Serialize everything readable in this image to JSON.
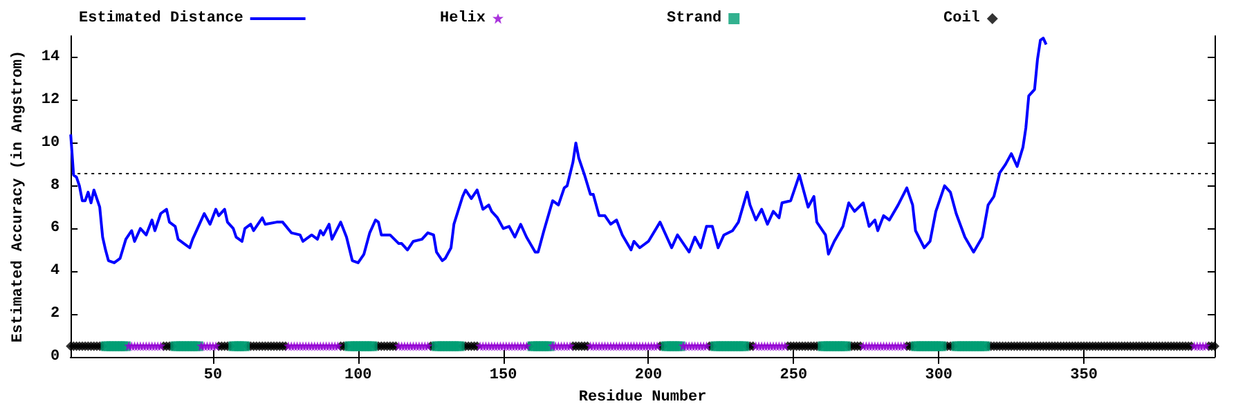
{
  "chart_data": {
    "type": "line",
    "xlabel": "Residue Number",
    "ylabel": "Estimated Accuracy (in Angstrom)",
    "xlim": [
      1,
      395
    ],
    "xticks": [
      50,
      100,
      150,
      200,
      250,
      300,
      350
    ],
    "ylim": [
      0,
      15
    ],
    "yticks": [
      0,
      2,
      4,
      6,
      8,
      10,
      12,
      14
    ],
    "grid": false,
    "legend": "top",
    "ref_lines": [
      {
        "axis": "y",
        "value": 8.6,
        "color": "#000000",
        "line_style": "dotted"
      }
    ],
    "series": [
      {
        "name": "Estimated Distance",
        "type": "line",
        "color": "#0000ff",
        "marker": "none",
        "line_style": "solid",
        "x": [
          1,
          2,
          3,
          4,
          5,
          6,
          7,
          8,
          9,
          11,
          12,
          13,
          14,
          16,
          18,
          20,
          22,
          23,
          25,
          27,
          29,
          30,
          32,
          34,
          35,
          37,
          38,
          40,
          42,
          43,
          45,
          47,
          49,
          51,
          52,
          54,
          55,
          57,
          58,
          60,
          61,
          63,
          64,
          67,
          68,
          72,
          74,
          77,
          80,
          81,
          84,
          86,
          87,
          88,
          90,
          91,
          94,
          96,
          98,
          100,
          102,
          104,
          106,
          107,
          108,
          111,
          114,
          115,
          117,
          119,
          122,
          124,
          126,
          127,
          129,
          130,
          132,
          133,
          136,
          137,
          139,
          141,
          143,
          145,
          146,
          148,
          150,
          152,
          154,
          156,
          158,
          161,
          162,
          164,
          167,
          169,
          171,
          172,
          174,
          175,
          176,
          178,
          180,
          181,
          183,
          185,
          187,
          189,
          191,
          194,
          195,
          197,
          200,
          204,
          208,
          210,
          214,
          216,
          218,
          220,
          222,
          224,
          226,
          229,
          231,
          234,
          235,
          237,
          239,
          241,
          243,
          245,
          246,
          249,
          252,
          254,
          255,
          257,
          258,
          261,
          262,
          264,
          267,
          269,
          271,
          274,
          276,
          278,
          279,
          281,
          283,
          286,
          289,
          291,
          292,
          295,
          297,
          299,
          302,
          304,
          306,
          309,
          312,
          315,
          317,
          319,
          321,
          323,
          325,
          327,
          329,
          330,
          331,
          333,
          334,
          335,
          336,
          337
        ],
        "values": [
          10.4,
          8.5,
          8.4,
          8.0,
          7.3,
          7.3,
          7.7,
          7.2,
          7.8,
          7.0,
          5.6,
          5.0,
          4.5,
          4.4,
          4.6,
          5.5,
          5.9,
          5.4,
          6.0,
          5.7,
          6.4,
          5.9,
          6.7,
          6.9,
          6.3,
          6.1,
          5.5,
          5.3,
          5.1,
          5.5,
          6.1,
          6.7,
          6.2,
          6.9,
          6.6,
          6.9,
          6.3,
          6.0,
          5.6,
          5.4,
          6.0,
          6.2,
          5.9,
          6.5,
          6.2,
          6.3,
          6.3,
          5.8,
          5.7,
          5.4,
          5.7,
          5.5,
          5.9,
          5.7,
          6.2,
          5.5,
          6.3,
          5.6,
          4.5,
          4.4,
          4.8,
          5.8,
          6.4,
          6.3,
          5.7,
          5.7,
          5.3,
          5.3,
          5.0,
          5.4,
          5.5,
          5.8,
          5.7,
          4.9,
          4.5,
          4.6,
          5.1,
          6.2,
          7.5,
          7.8,
          7.4,
          7.8,
          6.9,
          7.1,
          6.8,
          6.5,
          6.0,
          6.1,
          5.6,
          6.2,
          5.6,
          4.9,
          4.9,
          5.9,
          7.3,
          7.1,
          7.9,
          8.0,
          9.1,
          10.0,
          9.3,
          8.5,
          7.6,
          7.6,
          6.6,
          6.6,
          6.2,
          6.4,
          5.7,
          5.0,
          5.4,
          5.1,
          5.4,
          6.3,
          5.1,
          5.7,
          4.9,
          5.6,
          5.1,
          6.1,
          6.1,
          5.1,
          5.7,
          5.9,
          6.3,
          7.7,
          7.1,
          6.4,
          6.9,
          6.2,
          6.8,
          6.5,
          7.2,
          7.3,
          8.5,
          7.5,
          7.0,
          7.5,
          6.3,
          5.7,
          4.8,
          5.4,
          6.1,
          7.2,
          6.8,
          7.2,
          6.1,
          6.4,
          5.9,
          6.6,
          6.4,
          7.1,
          7.9,
          7.1,
          5.9,
          5.1,
          5.4,
          6.8,
          8.0,
          7.7,
          6.7,
          5.6,
          4.9,
          5.6,
          7.1,
          7.5,
          8.6,
          9.0,
          9.5,
          8.9,
          9.8,
          10.7,
          12.2,
          12.5,
          13.9,
          14.8,
          14.9,
          14.6
        ]
      },
      {
        "name": "Helix",
        "type": "scatter",
        "color": "#9400d3",
        "marker": "star",
        "x": [
          21,
          22,
          23,
          24,
          25,
          26,
          27,
          28,
          29,
          30,
          31,
          32,
          46,
          47,
          48,
          49,
          50,
          51,
          76,
          77,
          78,
          79,
          80,
          81,
          82,
          83,
          84,
          85,
          86,
          87,
          88,
          89,
          90,
          91,
          92,
          93,
          114,
          115,
          116,
          117,
          118,
          119,
          120,
          121,
          122,
          123,
          124,
          142,
          143,
          144,
          145,
          146,
          147,
          148,
          149,
          150,
          151,
          152,
          153,
          154,
          155,
          156,
          157,
          158,
          167,
          168,
          169,
          170,
          171,
          172,
          173,
          180,
          181,
          182,
          183,
          184,
          185,
          186,
          187,
          188,
          189,
          190,
          191,
          192,
          193,
          194,
          195,
          196,
          197,
          198,
          199,
          200,
          201,
          202,
          203,
          212,
          213,
          214,
          215,
          216,
          217,
          218,
          219,
          220,
          237,
          238,
          239,
          240,
          241,
          242,
          243,
          244,
          245,
          246,
          247,
          274,
          275,
          276,
          277,
          278,
          279,
          280,
          281,
          282,
          283,
          284,
          285,
          286,
          287,
          288,
          388,
          389,
          390,
          391,
          392
        ],
        "values": [
          0.5,
          0.5,
          0.5,
          0.5,
          0.5,
          0.5,
          0.5,
          0.5,
          0.5,
          0.5,
          0.5,
          0.5,
          0.5,
          0.5,
          0.5,
          0.5,
          0.5,
          0.5,
          0.5,
          0.5,
          0.5,
          0.5,
          0.5,
          0.5,
          0.5,
          0.5,
          0.5,
          0.5,
          0.5,
          0.5,
          0.5,
          0.5,
          0.5,
          0.5,
          0.5,
          0.5,
          0.5,
          0.5,
          0.5,
          0.5,
          0.5,
          0.5,
          0.5,
          0.5,
          0.5,
          0.5,
          0.5,
          0.5,
          0.5,
          0.5,
          0.5,
          0.5,
          0.5,
          0.5,
          0.5,
          0.5,
          0.5,
          0.5,
          0.5,
          0.5,
          0.5,
          0.5,
          0.5,
          0.5,
          0.5,
          0.5,
          0.5,
          0.5,
          0.5,
          0.5,
          0.5,
          0.5,
          0.5,
          0.5,
          0.5,
          0.5,
          0.5,
          0.5,
          0.5,
          0.5,
          0.5,
          0.5,
          0.5,
          0.5,
          0.5,
          0.5,
          0.5,
          0.5,
          0.5,
          0.5,
          0.5,
          0.5,
          0.5,
          0.5,
          0.5,
          0.5,
          0.5,
          0.5,
          0.5,
          0.5,
          0.5,
          0.5,
          0.5,
          0.5,
          0.5,
          0.5,
          0.5,
          0.5,
          0.5,
          0.5,
          0.5,
          0.5,
          0.5,
          0.5,
          0.5,
          0.5,
          0.5,
          0.5,
          0.5,
          0.5,
          0.5,
          0.5,
          0.5,
          0.5,
          0.5,
          0.5,
          0.5,
          0.5,
          0.5,
          0.5,
          0.5,
          0.5,
          0.5,
          0.5,
          0.5
        ]
      },
      {
        "name": "Strand",
        "type": "scatter",
        "color": "#009e73",
        "marker": "square",
        "x": [
          13,
          14,
          15,
          16,
          17,
          18,
          19,
          20,
          37,
          38,
          39,
          40,
          41,
          42,
          43,
          44,
          45,
          57,
          58,
          59,
          60,
          61,
          97,
          98,
          99,
          100,
          101,
          102,
          103,
          104,
          105,
          127,
          128,
          129,
          130,
          131,
          132,
          133,
          134,
          135,
          160,
          161,
          162,
          163,
          164,
          165,
          166,
          206,
          207,
          208,
          209,
          210,
          211,
          223,
          224,
          225,
          226,
          227,
          228,
          229,
          230,
          231,
          232,
          233,
          260,
          261,
          262,
          263,
          264,
          265,
          266,
          267,
          268,
          292,
          293,
          294,
          295,
          296,
          297,
          298,
          299,
          300,
          301,
          306,
          307,
          308,
          309,
          310,
          311,
          312,
          313,
          314,
          315,
          316
        ],
        "values": [
          0.5,
          0.5,
          0.5,
          0.5,
          0.5,
          0.5,
          0.5,
          0.5,
          0.5,
          0.5,
          0.5,
          0.5,
          0.5,
          0.5,
          0.5,
          0.5,
          0.5,
          0.5,
          0.5,
          0.5,
          0.5,
          0.5,
          0.5,
          0.5,
          0.5,
          0.5,
          0.5,
          0.5,
          0.5,
          0.5,
          0.5,
          0.5,
          0.5,
          0.5,
          0.5,
          0.5,
          0.5,
          0.5,
          0.5,
          0.5,
          0.5,
          0.5,
          0.5,
          0.5,
          0.5,
          0.5,
          0.5,
          0.5,
          0.5,
          0.5,
          0.5,
          0.5,
          0.5,
          0.5,
          0.5,
          0.5,
          0.5,
          0.5,
          0.5,
          0.5,
          0.5,
          0.5,
          0.5,
          0.5,
          0.5,
          0.5,
          0.5,
          0.5,
          0.5,
          0.5,
          0.5,
          0.5,
          0.5,
          0.5,
          0.5,
          0.5,
          0.5,
          0.5,
          0.5,
          0.5,
          0.5,
          0.5,
          0.5,
          0.5,
          0.5,
          0.5,
          0.5,
          0.5,
          0.5,
          0.5,
          0.5,
          0.5,
          0.5,
          0.5
        ]
      },
      {
        "name": "Coil",
        "type": "scatter",
        "color": "#000000",
        "marker": "diamond",
        "x": [
          1,
          2,
          3,
          4,
          5,
          6,
          7,
          8,
          9,
          10,
          11,
          12,
          33,
          34,
          35,
          36,
          52,
          53,
          54,
          55,
          56,
          62,
          63,
          64,
          65,
          66,
          67,
          68,
          69,
          70,
          71,
          72,
          73,
          74,
          75,
          94,
          95,
          96,
          106,
          107,
          108,
          109,
          110,
          111,
          112,
          113,
          125,
          126,
          136,
          137,
          138,
          139,
          140,
          141,
          159,
          174,
          175,
          176,
          177,
          178,
          179,
          204,
          205,
          221,
          222,
          234,
          235,
          236,
          248,
          249,
          250,
          251,
          252,
          253,
          254,
          255,
          256,
          257,
          258,
          259,
          269,
          270,
          271,
          272,
          273,
          289,
          290,
          291,
          302,
          303,
          304,
          305,
          317,
          318,
          319,
          320,
          321,
          322,
          323,
          324,
          325,
          326,
          327,
          328,
          329,
          330,
          331,
          332,
          333,
          334,
          335,
          336,
          337,
          338,
          339,
          340,
          341,
          342,
          343,
          344,
          345,
          346,
          347,
          348,
          349,
          350,
          351,
          352,
          353,
          354,
          355,
          356,
          357,
          358,
          359,
          360,
          361,
          362,
          363,
          364,
          365,
          366,
          367,
          368,
          369,
          370,
          371,
          372,
          373,
          374,
          375,
          376,
          377,
          378,
          379,
          380,
          381,
          382,
          383,
          384,
          385,
          386,
          387,
          393,
          394,
          395
        ],
        "values": [
          0.5,
          0.5,
          0.5,
          0.5,
          0.5,
          0.5,
          0.5,
          0.5,
          0.5,
          0.5,
          0.5,
          0.5,
          0.5,
          0.5,
          0.5,
          0.5,
          0.5,
          0.5,
          0.5,
          0.5,
          0.5,
          0.5,
          0.5,
          0.5,
          0.5,
          0.5,
          0.5,
          0.5,
          0.5,
          0.5,
          0.5,
          0.5,
          0.5,
          0.5,
          0.5,
          0.5,
          0.5,
          0.5,
          0.5,
          0.5,
          0.5,
          0.5,
          0.5,
          0.5,
          0.5,
          0.5,
          0.5,
          0.5,
          0.5,
          0.5,
          0.5,
          0.5,
          0.5,
          0.5,
          0.5,
          0.5,
          0.5,
          0.5,
          0.5,
          0.5,
          0.5,
          0.5,
          0.5,
          0.5,
          0.5,
          0.5,
          0.5,
          0.5,
          0.5,
          0.5,
          0.5,
          0.5,
          0.5,
          0.5,
          0.5,
          0.5,
          0.5,
          0.5,
          0.5,
          0.5,
          0.5,
          0.5,
          0.5,
          0.5,
          0.5,
          0.5,
          0.5,
          0.5,
          0.5,
          0.5,
          0.5,
          0.5,
          0.5,
          0.5,
          0.5,
          0.5,
          0.5,
          0.5,
          0.5,
          0.5,
          0.5,
          0.5,
          0.5,
          0.5,
          0.5,
          0.5,
          0.5,
          0.5,
          0.5,
          0.5,
          0.5,
          0.5,
          0.5,
          0.5,
          0.5,
          0.5,
          0.5,
          0.5,
          0.5,
          0.5,
          0.5,
          0.5,
          0.5,
          0.5,
          0.5,
          0.5,
          0.5,
          0.5,
          0.5,
          0.5,
          0.5,
          0.5,
          0.5,
          0.5,
          0.5,
          0.5,
          0.5,
          0.5,
          0.5,
          0.5,
          0.5,
          0.5,
          0.5,
          0.5,
          0.5,
          0.5,
          0.5,
          0.5,
          0.5,
          0.5,
          0.5,
          0.5,
          0.5,
          0.5,
          0.5,
          0.5,
          0.5,
          0.5,
          0.5,
          0.5,
          0.5,
          0.5,
          0.5,
          0.5,
          0.5,
          0.5
        ]
      }
    ]
  }
}
